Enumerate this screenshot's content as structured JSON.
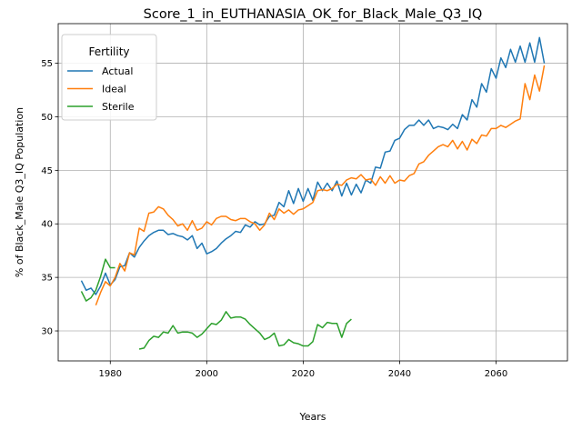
{
  "chart_data": {
    "type": "line",
    "title": "Score_1_in_EUTHANASIA_OK_for_Black_Male_Q3_IQ",
    "xlabel": "Years",
    "ylabel": "% of Black_Male Q3_IQ Population",
    "xlim": [
      1969.2,
      2074.8
    ],
    "ylim": [
      27.2,
      58.7
    ],
    "xticks": [
      1980,
      2000,
      2020,
      2040,
      2060
    ],
    "yticks": [
      30,
      35,
      40,
      45,
      50,
      55
    ],
    "grid": true,
    "legend": {
      "title": "Fertility",
      "position": "upper-left"
    },
    "series": [
      {
        "name": "Actual",
        "color": "#1f77b4",
        "x": [
          1974,
          1975,
          1976,
          1977,
          1978,
          1979,
          1980,
          1981,
          1982,
          1983,
          1984,
          1985,
          1986,
          1987,
          1988,
          1989,
          1990,
          1991,
          1992,
          1993,
          1994,
          1995,
          1996,
          1997,
          1998,
          1999,
          2000,
          2001,
          2002,
          2003,
          2004,
          2005,
          2006,
          2007,
          2008,
          2009,
          2010,
          2011,
          2012,
          2013,
          2014,
          2015,
          2016,
          2017,
          2018,
          2019,
          2020,
          2021,
          2022,
          2023,
          2024,
          2025,
          2026,
          2027,
          2028,
          2029,
          2030,
          2031,
          2032,
          2033,
          2034,
          2035,
          2036,
          2037,
          2038,
          2039,
          2040,
          2041,
          2042,
          2043,
          2044,
          2045,
          2046,
          2047,
          2048,
          2049,
          2050,
          2051,
          2052,
          2053,
          2054,
          2055,
          2056,
          2057,
          2058,
          2059,
          2060,
          2061,
          2062,
          2063,
          2064,
          2065,
          2066,
          2067,
          2068,
          2069,
          2070
        ],
        "y": [
          34.7,
          33.8,
          34.0,
          33.4,
          34.2,
          35.4,
          34.3,
          34.8,
          36.0,
          36.1,
          37.3,
          36.9,
          37.8,
          38.4,
          38.9,
          39.2,
          39.4,
          39.4,
          39.0,
          39.1,
          38.9,
          38.8,
          38.5,
          38.9,
          37.7,
          38.2,
          37.2,
          37.4,
          37.7,
          38.2,
          38.6,
          38.9,
          39.3,
          39.2,
          39.9,
          39.7,
          40.2,
          39.9,
          40.0,
          40.7,
          40.8,
          42.0,
          41.6,
          43.1,
          41.9,
          43.3,
          42.1,
          43.3,
          42.2,
          43.9,
          43.1,
          43.8,
          43.1,
          44.0,
          42.6,
          43.8,
          42.7,
          43.7,
          42.9,
          44.1,
          43.8,
          45.3,
          45.2,
          46.7,
          46.8,
          47.8,
          48.0,
          48.8,
          49.2,
          49.2,
          49.7,
          49.2,
          49.7,
          48.9,
          49.1,
          49.0,
          48.8,
          49.3,
          48.9,
          50.2,
          49.7,
          51.6,
          50.9,
          53.1,
          52.3,
          54.5,
          53.6,
          55.5,
          54.6,
          56.3,
          55.1,
          56.6,
          55.1,
          56.9,
          55.1,
          57.4,
          55.0
        ]
      },
      {
        "name": "Ideal",
        "color": "#ff7f0e",
        "x": [
          1977,
          1978,
          1979,
          1980,
          1981,
          1982,
          1983,
          1984,
          1985,
          1986,
          1987,
          1988,
          1989,
          1990,
          1991,
          1992,
          1993,
          1994,
          1995,
          1996,
          1997,
          1998,
          1999,
          2000,
          2001,
          2002,
          2003,
          2004,
          2005,
          2006,
          2007,
          2008,
          2009,
          2010,
          2011,
          2012,
          2013,
          2014,
          2015,
          2016,
          2017,
          2018,
          2019,
          2020,
          2021,
          2022,
          2023,
          2024,
          2025,
          2026,
          2027,
          2028,
          2029,
          2030,
          2031,
          2032,
          2033,
          2034,
          2035,
          2036,
          2037,
          2038,
          2039,
          2040,
          2041,
          2042,
          2043,
          2044,
          2045,
          2046,
          2047,
          2048,
          2049,
          2050,
          2051,
          2052,
          2053,
          2054,
          2055,
          2056,
          2057,
          2058,
          2059,
          2060,
          2061,
          2062,
          2063,
          2064,
          2065,
          2066,
          2067,
          2068,
          2069,
          2070
        ],
        "y": [
          32.4,
          33.6,
          34.6,
          34.2,
          35.0,
          36.3,
          35.6,
          37.3,
          37.1,
          39.6,
          39.3,
          41.0,
          41.1,
          41.6,
          41.4,
          40.8,
          40.4,
          39.8,
          40.0,
          39.4,
          40.3,
          39.4,
          39.6,
          40.2,
          39.9,
          40.5,
          40.7,
          40.7,
          40.4,
          40.3,
          40.5,
          40.5,
          40.2,
          40.0,
          39.4,
          39.9,
          41.0,
          40.4,
          41.4,
          41.0,
          41.3,
          40.9,
          41.3,
          41.4,
          41.7,
          42.0,
          43.1,
          43.2,
          43.1,
          43.3,
          43.7,
          43.6,
          44.1,
          44.3,
          44.2,
          44.6,
          44.1,
          44.2,
          43.6,
          44.4,
          43.8,
          44.5,
          43.8,
          44.1,
          44.0,
          44.5,
          44.7,
          45.6,
          45.8,
          46.4,
          46.8,
          47.2,
          47.4,
          47.2,
          47.8,
          47.0,
          47.7,
          46.9,
          47.9,
          47.5,
          48.3,
          48.2,
          48.9,
          48.9,
          49.2,
          49.0,
          49.3,
          49.6,
          49.8,
          53.1,
          51.6,
          53.9,
          52.4,
          54.8
        ]
      },
      {
        "name": "Sterile",
        "color": "#2ca02c",
        "x": [
          1974,
          1975,
          1976,
          1977,
          1978,
          1979,
          1980,
          1981,
          1986,
          1987,
          1988,
          1989,
          1990,
          1991,
          1992,
          1993,
          1994,
          1995,
          1996,
          1997,
          1998,
          1999,
          2000,
          2001,
          2002,
          2003,
          2004,
          2005,
          2006,
          2007,
          2008,
          2009,
          2010,
          2011,
          2012,
          2013,
          2014,
          2015,
          2016,
          2017,
          2018,
          2019,
          2020,
          2021,
          2022,
          2023,
          2024,
          2025,
          2026,
          2027,
          2028,
          2029,
          2030
        ],
        "y": [
          33.7,
          32.8,
          33.1,
          33.8,
          35.1,
          36.7,
          35.9,
          35.9,
          28.3,
          28.4,
          29.1,
          29.5,
          29.4,
          29.9,
          29.8,
          30.5,
          29.8,
          29.9,
          29.9,
          29.8,
          29.4,
          29.7,
          30.2,
          30.7,
          30.6,
          31.0,
          31.8,
          31.2,
          31.3,
          31.3,
          31.1,
          30.6,
          30.2,
          29.8,
          29.2,
          29.4,
          29.8,
          28.6,
          28.7,
          29.2,
          28.9,
          28.8,
          28.6,
          28.6,
          29.0,
          30.6,
          30.3,
          30.8,
          30.7,
          30.7,
          29.4,
          30.7,
          31.1
        ]
      }
    ]
  }
}
